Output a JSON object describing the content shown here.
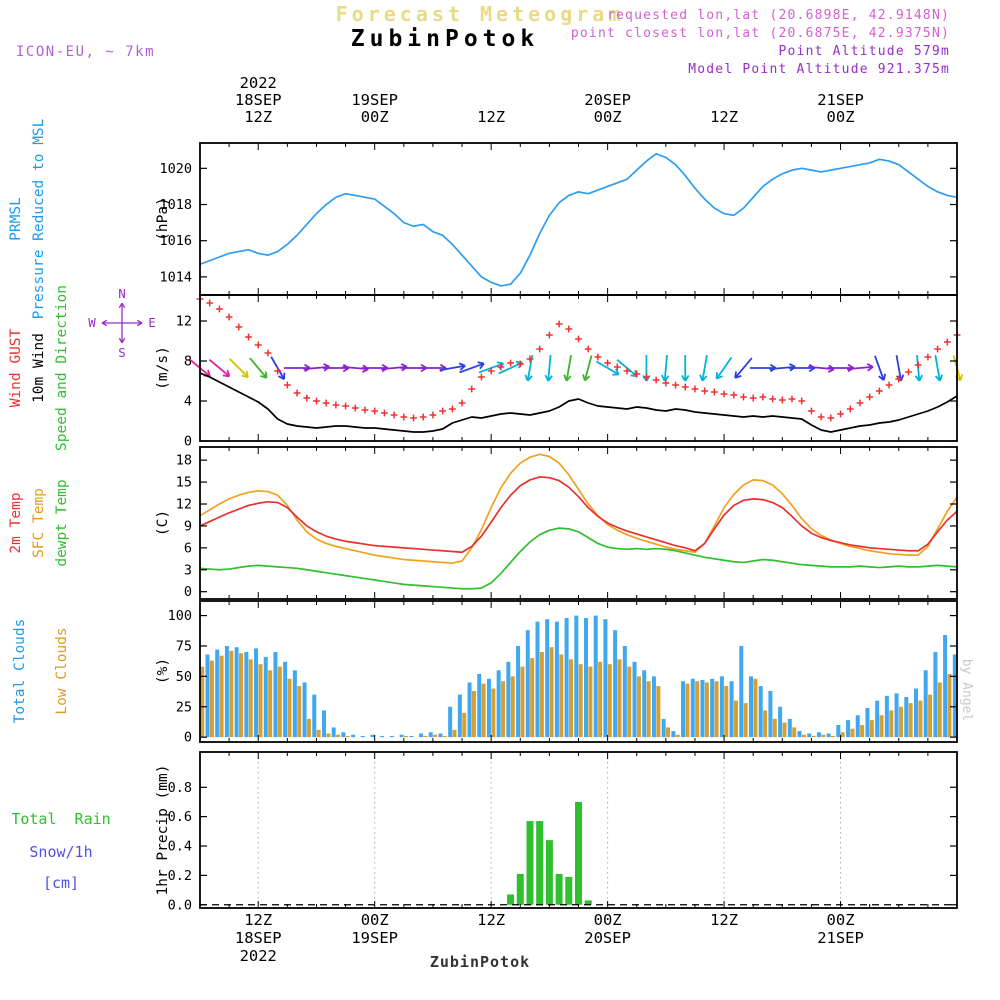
{
  "header": {
    "banner": "Forecast Meteogram",
    "station": "ZubinPotok",
    "requested": "requested lon,lat (20.6898E, 42.9148N)",
    "closest": "point closest lon,lat (20.6875E, 42.9375N)",
    "point_altitude": "Point Altitude 579m",
    "model_altitude": "Model Point Altitude 921.375m",
    "model_info": "ICON-EU, ~ 7km"
  },
  "footer": {
    "station": "ZubinPotok",
    "credit": "by Angel"
  },
  "side_labels": {
    "pressure": {
      "l1": "PRMSL",
      "l2": "Pressure Reduced to MSL",
      "unit": "(hPa)"
    },
    "wind": {
      "l1": "Wind GUST",
      "l2": "10m Wind",
      "l3": "Speed and Direction",
      "unit": "(m/s)",
      "compass": {
        "n": "N",
        "s": "S",
        "e": "E",
        "w": "W"
      }
    },
    "temp": {
      "l1": "2m Temp",
      "l2": "SFC Temp",
      "l3": "dewpt Temp",
      "unit": "(C)"
    },
    "clouds": {
      "l1": "Total Clouds",
      "l2": "Low Clouds",
      "unit": "(%)"
    },
    "precip": {
      "l1": "Total  Rain",
      "l2": "Snow/1h",
      "l3": "[cm]",
      "unit": "1hr Precip (mm)"
    }
  },
  "axis": {
    "hours_span": 78,
    "minor_tick_h": 3,
    "time_ticks": [
      {
        "h": 6,
        "z": "12Z",
        "day": "18SEP",
        "year": "2022"
      },
      {
        "h": 18,
        "z": "00Z",
        "day": "19SEP"
      },
      {
        "h": 30,
        "z": "12Z"
      },
      {
        "h": 42,
        "z": "00Z",
        "day": "20SEP"
      },
      {
        "h": 54,
        "z": "12Z"
      },
      {
        "h": 66,
        "z": "00Z",
        "day": "21SEP"
      }
    ]
  },
  "chart_data": [
    {
      "id": "pressure",
      "type": "line",
      "title": "PRMSL Pressure Reduced to MSL",
      "ylabel": "(hPa)",
      "ylim": [
        1013,
        1021.4
      ],
      "yticks": [
        1014,
        1016,
        1018,
        1020
      ],
      "series": [
        {
          "name": "PRMSL",
          "color": "#2e9df0",
          "style": "line",
          "values": [
            1014.7,
            1014.9,
            1015.1,
            1015.3,
            1015.4,
            1015.5,
            1015.3,
            1015.2,
            1015.4,
            1015.8,
            1016.3,
            1016.9,
            1017.5,
            1018.0,
            1018.4,
            1018.6,
            1018.5,
            1018.4,
            1018.3,
            1017.9,
            1017.5,
            1017.0,
            1016.8,
            1016.9,
            1016.5,
            1016.3,
            1015.8,
            1015.2,
            1014.6,
            1014.0,
            1013.7,
            1013.5,
            1013.6,
            1014.2,
            1015.2,
            1016.4,
            1017.4,
            1018.1,
            1018.5,
            1018.7,
            1018.6,
            1018.8,
            1019.0,
            1019.2,
            1019.4,
            1019.9,
            1020.4,
            1020.8,
            1020.6,
            1020.2,
            1019.6,
            1018.9,
            1018.3,
            1017.8,
            1017.5,
            1017.4,
            1017.8,
            1018.4,
            1019.0,
            1019.4,
            1019.7,
            1019.9,
            1020.0,
            1019.9,
            1019.8,
            1019.9,
            1020.0,
            1020.1,
            1020.2,
            1020.3,
            1020.5,
            1020.4,
            1020.2,
            1019.8,
            1019.4,
            1019.0,
            1018.7,
            1018.5,
            1018.4
          ]
        }
      ]
    },
    {
      "id": "wind",
      "type": "line",
      "title": "Wind GUST 10m Wind Speed and Direction",
      "ylabel": "(m/s)",
      "ylim": [
        0,
        14.6
      ],
      "yticks": [
        0,
        4,
        8,
        12
      ],
      "series": [
        {
          "name": "Wind GUST",
          "color": "#f03030",
          "style": "plus",
          "values": [
            14.2,
            13.8,
            13.2,
            12.4,
            11.4,
            10.4,
            9.6,
            8.8,
            7.0,
            5.6,
            4.8,
            4.3,
            4.0,
            3.8,
            3.6,
            3.5,
            3.3,
            3.1,
            3.0,
            2.8,
            2.6,
            2.4,
            2.3,
            2.4,
            2.6,
            3.0,
            3.2,
            3.8,
            5.2,
            6.4,
            7.0,
            7.4,
            7.8,
            7.7,
            8.2,
            9.2,
            10.6,
            11.7,
            11.2,
            10.2,
            9.2,
            8.4,
            7.8,
            7.4,
            7.0,
            6.7,
            6.4,
            6.1,
            5.8,
            5.6,
            5.4,
            5.2,
            5.0,
            4.9,
            4.7,
            4.6,
            4.4,
            4.3,
            4.4,
            4.2,
            4.1,
            4.2,
            4.0,
            3.0,
            2.4,
            2.3,
            2.7,
            3.2,
            3.8,
            4.4,
            5.0,
            5.6,
            6.2,
            6.9,
            7.6,
            8.4,
            9.2,
            9.9,
            10.6
          ]
        },
        {
          "name": "10m Wind Speed",
          "color": "#000000",
          "style": "line",
          "values": [
            6.8,
            6.4,
            5.9,
            5.4,
            4.9,
            4.4,
            3.9,
            3.2,
            2.2,
            1.7,
            1.5,
            1.4,
            1.3,
            1.4,
            1.5,
            1.5,
            1.4,
            1.3,
            1.3,
            1.2,
            1.1,
            1.0,
            0.9,
            0.9,
            1.0,
            1.2,
            1.8,
            2.1,
            2.4,
            2.3,
            2.5,
            2.7,
            2.8,
            2.7,
            2.6,
            2.8,
            3.0,
            3.4,
            4.0,
            4.2,
            3.8,
            3.5,
            3.4,
            3.3,
            3.2,
            3.4,
            3.3,
            3.1,
            3.0,
            3.2,
            3.1,
            2.9,
            2.8,
            2.7,
            2.6,
            2.5,
            2.4,
            2.5,
            2.4,
            2.5,
            2.4,
            2.3,
            2.2,
            1.6,
            1.1,
            0.9,
            1.1,
            1.3,
            1.5,
            1.6,
            1.8,
            1.9,
            2.1,
            2.4,
            2.7,
            3.0,
            3.4,
            3.9,
            4.5
          ]
        }
      ],
      "arrows": {
        "every_h": 2,
        "y_value": 7.3,
        "dirs_to_deg": [
          130,
          130,
          135,
          140,
          150,
          90,
          85,
          90,
          95,
          90,
          85,
          90,
          90,
          80,
          70,
          70,
          65,
          190,
          185,
          190,
          195,
          120,
          130,
          180,
          185,
          180,
          190,
          215,
          220,
          90,
          85,
          90,
          95,
          90,
          85,
          160,
          170,
          175,
          170,
          165
        ],
        "speed_palette": [
          {
            "min": 5.5,
            "color": "#e020a0"
          },
          {
            "min": 4.45,
            "color": "#d4c400"
          },
          {
            "min": 3.45,
            "color": "#3cb32d"
          },
          {
            "min": 2.45,
            "color": "#00b4d8"
          },
          {
            "min": 1.6,
            "color": "#2d3fe0"
          },
          {
            "min": 0,
            "color": "#8a23cc"
          }
        ]
      }
    },
    {
      "id": "temp",
      "type": "line",
      "title": "2m Temp / SFC Temp / dewpt Temp",
      "ylabel": "(C)",
      "ylim": [
        -1,
        19.8
      ],
      "yticks": [
        0,
        3,
        6,
        9,
        12,
        15,
        18
      ],
      "series": [
        {
          "name": "SFC Temp",
          "color": "#efa21e",
          "style": "line",
          "values": [
            10.4,
            11.2,
            12.0,
            12.7,
            13.2,
            13.6,
            13.8,
            13.7,
            13.2,
            11.8,
            9.8,
            8.2,
            7.2,
            6.6,
            6.2,
            5.9,
            5.6,
            5.3,
            5.0,
            4.8,
            4.6,
            4.4,
            4.3,
            4.2,
            4.1,
            4.0,
            3.9,
            4.2,
            6.0,
            8.5,
            11.5,
            14.2,
            16.2,
            17.6,
            18.4,
            18.8,
            18.5,
            17.6,
            16.0,
            14.0,
            12.0,
            10.4,
            9.2,
            8.4,
            7.8,
            7.3,
            6.9,
            6.5,
            6.1,
            5.8,
            5.6,
            5.4,
            6.6,
            9.0,
            11.5,
            13.3,
            14.6,
            15.3,
            15.2,
            14.6,
            13.4,
            11.8,
            10.0,
            8.6,
            7.7,
            7.1,
            6.6,
            6.2,
            5.9,
            5.6,
            5.4,
            5.2,
            5.1,
            5.0,
            5.0,
            6.2,
            8.6,
            11.0,
            12.9
          ]
        },
        {
          "name": "2m Temp",
          "color": "#e83030",
          "style": "line",
          "values": [
            9.0,
            9.6,
            10.2,
            10.8,
            11.3,
            11.8,
            12.1,
            12.3,
            12.2,
            11.5,
            10.2,
            9.0,
            8.2,
            7.6,
            7.2,
            6.9,
            6.7,
            6.5,
            6.3,
            6.2,
            6.1,
            6.0,
            5.9,
            5.8,
            5.7,
            5.6,
            5.5,
            5.4,
            6.2,
            7.6,
            9.5,
            11.5,
            13.2,
            14.5,
            15.3,
            15.7,
            15.6,
            15.2,
            14.3,
            13.0,
            11.5,
            10.3,
            9.4,
            8.8,
            8.3,
            7.9,
            7.5,
            7.1,
            6.7,
            6.3,
            6.0,
            5.6,
            6.6,
            8.6,
            10.5,
            11.8,
            12.5,
            12.7,
            12.6,
            12.2,
            11.5,
            10.3,
            9.0,
            8.0,
            7.4,
            7.0,
            6.7,
            6.4,
            6.2,
            6.0,
            5.9,
            5.8,
            5.7,
            5.6,
            5.6,
            6.5,
            8.2,
            9.8,
            11.0
          ]
        },
        {
          "name": "dewpt Temp",
          "color": "#2fbf2f",
          "style": "line",
          "values": [
            3.2,
            3.1,
            3.0,
            3.1,
            3.3,
            3.5,
            3.6,
            3.5,
            3.4,
            3.3,
            3.2,
            3.0,
            2.8,
            2.6,
            2.4,
            2.2,
            2.0,
            1.8,
            1.6,
            1.4,
            1.2,
            1.0,
            0.9,
            0.8,
            0.7,
            0.6,
            0.5,
            0.4,
            0.4,
            0.5,
            1.2,
            2.5,
            4.0,
            5.5,
            6.8,
            7.8,
            8.4,
            8.7,
            8.6,
            8.2,
            7.4,
            6.6,
            6.1,
            5.9,
            5.8,
            5.9,
            5.8,
            5.9,
            5.8,
            5.6,
            5.3,
            5.0,
            4.7,
            4.5,
            4.3,
            4.1,
            4.0,
            4.2,
            4.4,
            4.3,
            4.1,
            3.9,
            3.7,
            3.6,
            3.5,
            3.4,
            3.4,
            3.4,
            3.5,
            3.4,
            3.3,
            3.4,
            3.5,
            3.4,
            3.4,
            3.5,
            3.6,
            3.5,
            3.4
          ]
        }
      ]
    },
    {
      "id": "clouds",
      "type": "bar",
      "title": "Total Clouds / Low Clouds",
      "ylabel": "(%)",
      "ylim": [
        -4,
        112
      ],
      "yticks": [
        0,
        25,
        50,
        75,
        100
      ],
      "series": [
        {
          "name": "Total Clouds",
          "color": "#3fa8f0",
          "values": [
            62,
            68,
            72,
            75,
            74,
            70,
            73,
            66,
            70,
            62,
            55,
            45,
            35,
            22,
            8,
            4,
            2,
            1,
            2,
            1,
            1,
            2,
            1,
            3,
            4,
            3,
            25,
            35,
            45,
            52,
            48,
            55,
            62,
            75,
            88,
            95,
            97,
            95,
            98,
            100,
            98,
            100,
            97,
            88,
            75,
            62,
            55,
            50,
            15,
            5,
            46,
            48,
            47,
            48,
            50,
            46,
            75,
            50,
            42,
            38,
            25,
            15,
            5,
            3,
            4,
            3,
            10,
            14,
            18,
            24,
            30,
            34,
            36,
            33,
            40,
            55,
            70,
            84,
            68
          ]
        },
        {
          "name": "Low Clouds",
          "color": "#d4a035",
          "values": [
            58,
            63,
            67,
            71,
            69,
            64,
            60,
            55,
            58,
            48,
            42,
            15,
            6,
            3,
            2,
            1,
            0,
            0,
            0,
            0,
            0,
            1,
            0,
            1,
            2,
            1,
            6,
            20,
            38,
            44,
            40,
            46,
            50,
            58,
            65,
            70,
            74,
            68,
            64,
            60,
            58,
            62,
            60,
            64,
            58,
            50,
            46,
            42,
            8,
            2,
            44,
            46,
            45,
            46,
            42,
            30,
            28,
            48,
            22,
            15,
            12,
            8,
            2,
            1,
            2,
            1,
            4,
            7,
            10,
            14,
            18,
            22,
            25,
            28,
            30,
            35,
            45,
            52,
            50
          ]
        }
      ]
    },
    {
      "id": "precip",
      "type": "bar",
      "title": "Total Rain / Snow 1h",
      "ylabel": "1hr Precip (mm)",
      "ylim": [
        -0.022,
        1.04
      ],
      "yticks": [
        0,
        0.2,
        0.4,
        0.6,
        0.8
      ],
      "ytick_labels": [
        "0.0",
        "0.2",
        "0.4",
        "0.6",
        "0.8"
      ],
      "zero_line_dashed": true,
      "vgrid_dotted": true,
      "series": [
        {
          "name": "Total Rain (mm/1h)",
          "color": "#2fbf2f",
          "values": [
            0,
            0,
            0,
            0,
            0,
            0,
            0,
            0,
            0,
            0,
            0,
            0,
            0,
            0,
            0,
            0,
            0,
            0,
            0,
            0,
            0,
            0,
            0,
            0,
            0,
            0,
            0,
            0,
            0,
            0,
            0,
            0,
            0.07,
            0.21,
            0.57,
            0.57,
            0.44,
            0.21,
            0.19,
            0.7,
            0.03,
            0,
            0,
            0,
            0,
            0,
            0,
            0,
            0,
            0,
            0,
            0,
            0,
            0,
            0,
            0,
            0,
            0,
            0,
            0,
            0,
            0,
            0,
            0,
            0,
            0,
            0,
            0,
            0,
            0,
            0,
            0,
            0,
            0,
            0,
            0,
            0,
            0,
            0
          ]
        },
        {
          "name": "Snow/1h (cm)",
          "color": "#5050e8",
          "values": []
        }
      ]
    }
  ]
}
